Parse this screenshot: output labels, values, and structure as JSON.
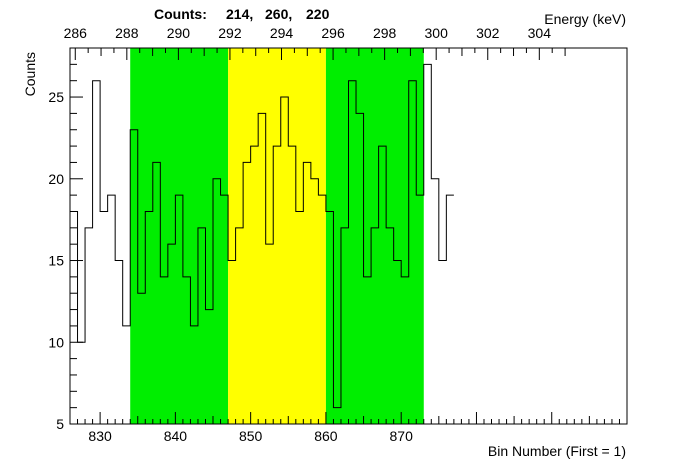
{
  "chart_data": {
    "type": "histogram-step",
    "header_label": "Counts:",
    "region_counts": [
      "214,",
      "260,",
      "220"
    ],
    "ylabel": "Counts",
    "xlabel_bottom": "Bin Number (First = 1)",
    "xlabel_top": "Energy (keV)",
    "xlim": [
      826,
      900
    ],
    "ylim": [
      5,
      28
    ],
    "y_ticks": [
      5,
      10,
      15,
      20,
      25
    ],
    "x_ticks_bottom": [
      830,
      840,
      850,
      860,
      870
    ],
    "x_ticks_top_values": [
      286,
      288,
      290,
      292,
      294,
      296,
      298,
      300,
      302,
      304
    ],
    "energy_mapping": {
      "bin_at_286_keV": 826.7,
      "bins_per_keV": 3.425
    },
    "regions": [
      {
        "from": 834,
        "to": 847,
        "color": "#00ee00"
      },
      {
        "from": 847,
        "to": 860,
        "color": "#ffff00"
      },
      {
        "from": 860,
        "to": 873,
        "color": "#00ee00"
      }
    ],
    "bin_start": 826,
    "values": [
      18,
      10,
      17,
      26,
      18,
      19,
      15,
      11,
      23,
      13,
      18,
      21,
      14,
      16,
      19,
      14,
      11,
      17,
      12,
      20,
      19,
      15,
      17,
      21,
      22,
      24,
      16,
      22,
      25,
      22,
      18,
      21,
      20,
      19,
      18,
      6,
      17,
      26,
      24,
      14,
      17,
      22,
      17,
      15,
      14,
      26,
      19,
      27,
      20,
      15,
      19
    ]
  }
}
